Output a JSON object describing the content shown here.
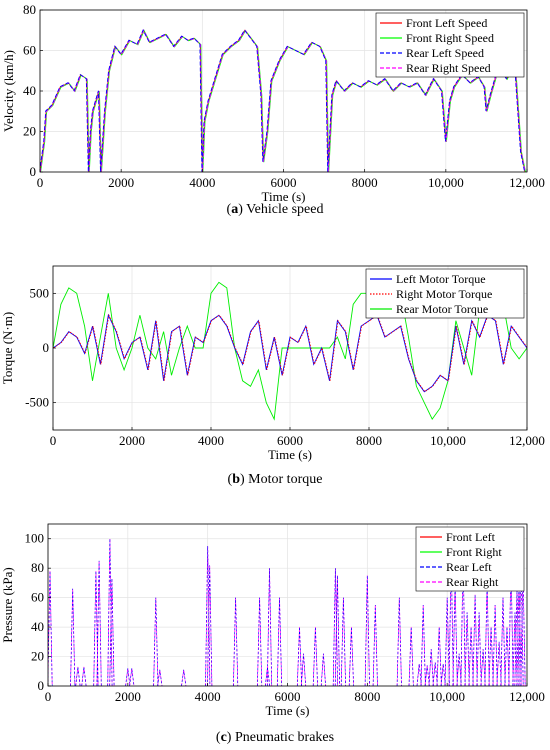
{
  "chart_data": [
    {
      "id": "a",
      "type": "line",
      "caption_label": "a",
      "caption_text": " Vehicle speed",
      "xlabel": "Time (s)",
      "ylabel": "Velocity (km/h)",
      "xlim": [
        0,
        12000
      ],
      "ylim": [
        0,
        80
      ],
      "xticks": [
        0,
        2000,
        4000,
        6000,
        8000,
        10000,
        12000
      ],
      "xtick_labels": [
        "0",
        "2000",
        "4000",
        "6000",
        "8000",
        "10,000",
        "12,000"
      ],
      "yticks": [
        0,
        20,
        40,
        60,
        80
      ],
      "ytick_labels": [
        "0",
        "20",
        "40",
        "60",
        "80"
      ],
      "grid": true,
      "legend_position": "top-right",
      "series": [
        {
          "name": "Front Left Speed",
          "color": "#ff0000",
          "dash": "solid"
        },
        {
          "name": "Front Right Speed",
          "color": "#00ff00",
          "dash": "solid"
        },
        {
          "name": "Rear Left Speed",
          "color": "#0000ff",
          "dash": "dashed"
        },
        {
          "name": "Rear Right Speed",
          "color": "#ff00ff",
          "dash": "dashed"
        }
      ],
      "x": [
        0,
        100,
        150,
        300,
        500,
        700,
        850,
        1000,
        1150,
        1200,
        1250,
        1300,
        1450,
        1500,
        1550,
        1600,
        1700,
        1850,
        2000,
        2200,
        2400,
        2550,
        2700,
        2900,
        3100,
        3300,
        3500,
        3650,
        3800,
        3950,
        4000,
        4050,
        4150,
        4300,
        4500,
        4700,
        4900,
        5050,
        5200,
        5350,
        5450,
        5500,
        5600,
        5700,
        5900,
        6100,
        6300,
        6500,
        6700,
        6900,
        7050,
        7100,
        7200,
        7300,
        7500,
        7700,
        7900,
        8100,
        8300,
        8500,
        8700,
        8900,
        9100,
        9300,
        9500,
        9700,
        9900,
        10000,
        10100,
        10200,
        10400,
        10600,
        10800,
        10950,
        11000,
        11100,
        11300,
        11500,
        11700,
        11850,
        11950
      ],
      "y": [
        0,
        15,
        30,
        33,
        42,
        44,
        40,
        48,
        46,
        0,
        20,
        30,
        40,
        0,
        15,
        30,
        50,
        62,
        58,
        65,
        63,
        70,
        64,
        66,
        68,
        62,
        67,
        65,
        66,
        63,
        0,
        25,
        35,
        45,
        58,
        62,
        65,
        70,
        66,
        62,
        38,
        5,
        20,
        45,
        55,
        62,
        60,
        58,
        64,
        62,
        55,
        0,
        38,
        45,
        40,
        44,
        42,
        45,
        43,
        46,
        40,
        44,
        42,
        44,
        38,
        46,
        40,
        15,
        35,
        42,
        48,
        44,
        47,
        42,
        30,
        38,
        52,
        46,
        54,
        10,
        0
      ]
    },
    {
      "id": "b",
      "type": "line",
      "caption_label": "b",
      "caption_text": " Motor torque",
      "xlabel": "Time (s)",
      "ylabel": "Torque (N·m)",
      "xlim": [
        0,
        12000
      ],
      "ylim": [
        -750,
        750
      ],
      "xticks": [
        0,
        2000,
        4000,
        6000,
        8000,
        10000,
        12000
      ],
      "xtick_labels": [
        "0",
        "2000",
        "4000",
        "6000",
        "8000",
        "10,000",
        "12,000"
      ],
      "yticks": [
        -500,
        0,
        500
      ],
      "ytick_labels": [
        "-500",
        "0",
        "500"
      ],
      "grid": true,
      "legend_position": "top-right",
      "series": [
        {
          "name": "Left Motor Torque",
          "color": "#0000ff",
          "dash": "solid"
        },
        {
          "name": "Right Motor Torque",
          "color": "#ff0000",
          "dash": "dotted"
        },
        {
          "name": "Rear Motor Torque",
          "color": "#00ee00",
          "dash": "solid"
        }
      ],
      "x_motor": [
        0,
        200,
        400,
        600,
        800,
        1000,
        1200,
        1400,
        1600,
        1800,
        2000,
        2200,
        2400,
        2600,
        2800,
        3000,
        3200,
        3400,
        3600,
        3800,
        4000,
        4200,
        4400,
        4600,
        4800,
        5000,
        5200,
        5400,
        5600,
        5800,
        6000,
        6200,
        6400,
        6600,
        6800,
        7000,
        7200,
        7400,
        7600,
        7800,
        8000,
        8200,
        8400,
        8600,
        8800,
        9000,
        9200,
        9400,
        9600,
        9800,
        10000,
        10200,
        10400,
        10600,
        10800,
        11000,
        11200,
        11400,
        11600,
        11800,
        12000
      ],
      "y_motor": [
        0,
        50,
        150,
        100,
        -50,
        200,
        -150,
        300,
        150,
        -100,
        50,
        100,
        -200,
        250,
        -300,
        150,
        200,
        -250,
        100,
        50,
        250,
        300,
        200,
        0,
        -150,
        150,
        250,
        -200,
        100,
        -250,
        100,
        50,
        200,
        -150,
        0,
        -300,
        250,
        150,
        -200,
        200,
        250,
        300,
        100,
        150,
        200,
        -100,
        -300,
        -400,
        -350,
        -250,
        -300,
        200,
        -150,
        250,
        100,
        300,
        250,
        -150,
        200,
        100,
        0
      ],
      "y_rear": [
        0,
        400,
        550,
        500,
        200,
        -300,
        100,
        500,
        0,
        -200,
        0,
        300,
        0,
        -100,
        150,
        -250,
        0,
        200,
        0,
        0,
        500,
        600,
        550,
        0,
        -300,
        -350,
        -200,
        -500,
        -650,
        0,
        0,
        0,
        0,
        0,
        0,
        0,
        100,
        -100,
        400,
        500,
        500,
        550,
        450,
        500,
        500,
        100,
        -350,
        -500,
        -650,
        -550,
        -300,
        250,
        0,
        -250,
        350,
        400,
        450,
        400,
        0,
        -100,
        0
      ]
    },
    {
      "id": "c",
      "type": "line",
      "caption_label": "c",
      "caption_text": " Pneumatic brakes",
      "xlabel": "Time (s)",
      "ylabel": "Pressure (kPa)",
      "xlim": [
        0,
        12000
      ],
      "ylim": [
        0,
        110
      ],
      "xticks": [
        0,
        2000,
        4000,
        6000,
        8000,
        10000,
        12000
      ],
      "xtick_labels": [
        "0",
        "2000",
        "4000",
        "6000",
        "8000",
        "10,000",
        "12,000"
      ],
      "yticks": [
        0,
        20,
        40,
        60,
        80,
        100
      ],
      "ytick_labels": [
        "0",
        "20",
        "40",
        "60",
        "80",
        "100"
      ],
      "grid": true,
      "legend_position": "top-right",
      "series": [
        {
          "name": "Front Left",
          "color": "#ff0000",
          "dash": "solid"
        },
        {
          "name": "Front Right",
          "color": "#00ff00",
          "dash": "solid"
        },
        {
          "name": "Rear Left",
          "color": "#0000ff",
          "dash": "dashed"
        },
        {
          "name": "Rear Right",
          "color": "#ff00ff",
          "dash": "dashed"
        }
      ],
      "spikes_x": [
        50,
        620,
        750,
        900,
        1200,
        1280,
        1550,
        1600,
        2000,
        2100,
        2700,
        2800,
        3400,
        4000,
        4050,
        4700,
        5300,
        5500,
        5550,
        5800,
        6300,
        6400,
        6700,
        6900,
        7200,
        7250,
        7400,
        7600,
        8000,
        8200,
        8800,
        9100,
        9300,
        9400,
        9500,
        9600,
        9700,
        9800,
        9900,
        10000,
        10100,
        10200,
        10300,
        10400,
        10500,
        10600,
        10700,
        10800,
        10900,
        11000,
        11100,
        11200,
        11300,
        11400,
        11500,
        11600,
        11700,
        11750,
        11800,
        11850,
        11900
      ],
      "spikes_y": [
        78,
        66,
        13,
        13,
        78,
        85,
        100,
        73,
        12,
        12,
        60,
        11,
        11,
        95,
        82,
        60,
        60,
        13,
        80,
        60,
        40,
        22,
        40,
        22,
        80,
        75,
        60,
        40,
        75,
        55,
        60,
        40,
        15,
        55,
        14,
        25,
        16,
        40,
        15,
        60,
        88,
        70,
        22,
        88,
        50,
        40,
        62,
        50,
        25,
        70,
        40,
        55,
        30,
        60,
        40,
        85,
        50,
        65,
        70,
        91,
        80
      ]
    }
  ]
}
